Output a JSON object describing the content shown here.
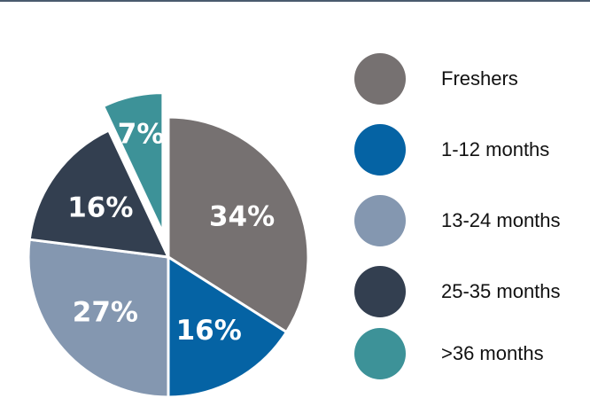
{
  "chart_data": {
    "type": "pie",
    "slices": [
      {
        "label": "Freshers",
        "value": 34,
        "display": "34%",
        "color": "#767171",
        "exploded": false
      },
      {
        "label": "1-12 months",
        "value": 16,
        "display": "16%",
        "color": "#0563a4",
        "exploded": false
      },
      {
        "label": "13-24 months",
        "value": 27,
        "display": "27%",
        "color": "#8497b0",
        "exploded": false
      },
      {
        "label": "25-35 months",
        "value": 16,
        "display": "16%",
        "color": "#333f50",
        "exploded": false
      },
      {
        "label": ">36 months",
        "value": 7,
        "display": "7%",
        "color": "#3d9298",
        "exploded": true
      }
    ],
    "legend_position": "right"
  },
  "legend": {
    "items": [
      {
        "label": "Freshers",
        "color": "#767171"
      },
      {
        "label": "1-12 months",
        "color": "#0563a4"
      },
      {
        "label": "13-24 months",
        "color": "#8497b0"
      },
      {
        "label": "25-35 months",
        "color": "#333f50"
      },
      {
        "label": ">36 months",
        "color": "#3d9298"
      }
    ]
  }
}
